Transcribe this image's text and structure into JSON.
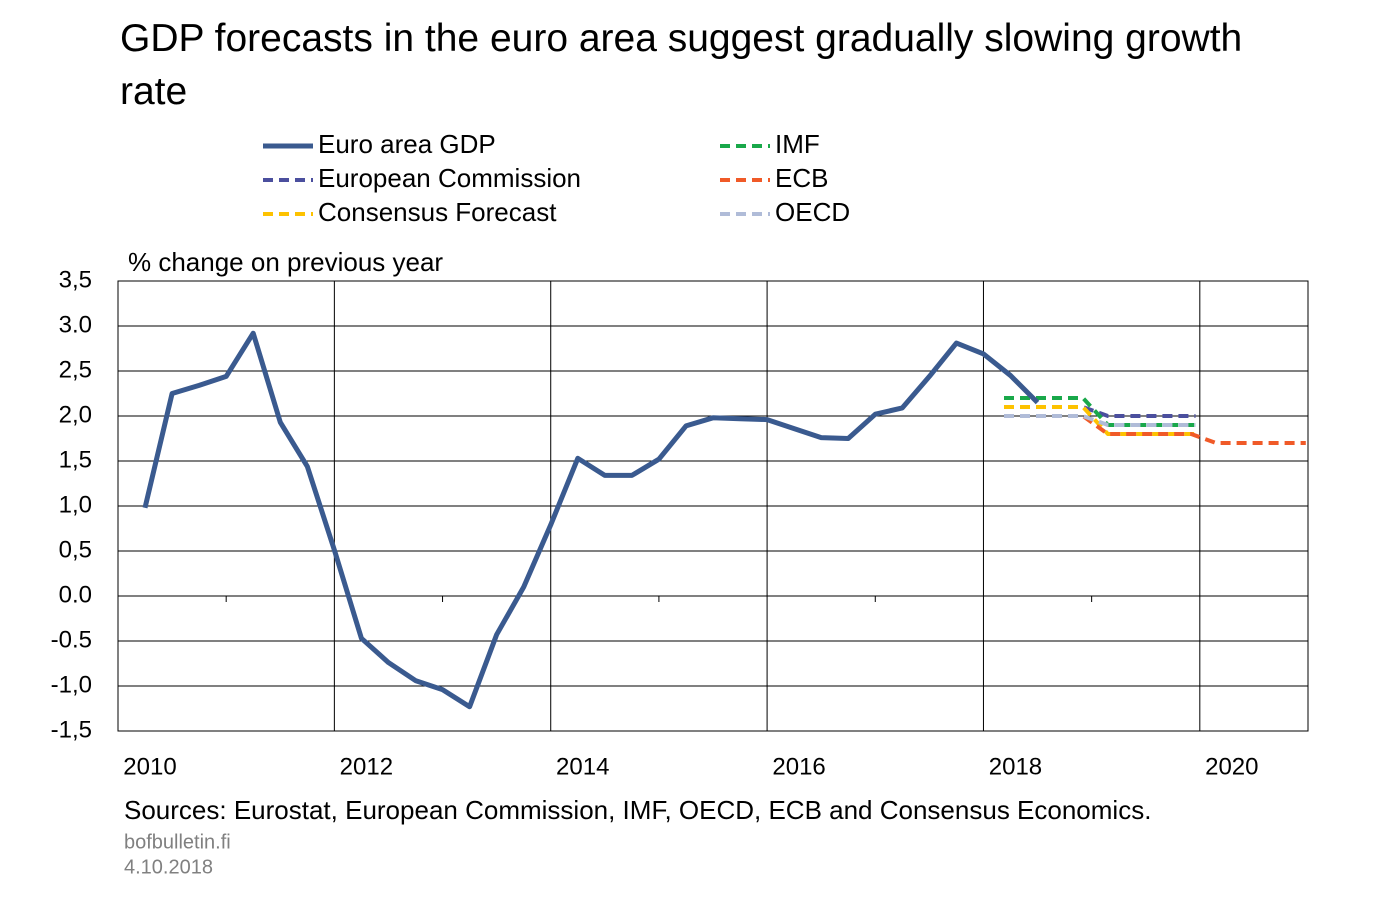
{
  "chart_data": {
    "type": "line",
    "title": "GDP forecasts in the euro area suggest gradually slowing growth rate",
    "y_label": "% change on previous year",
    "source": "Sources: Eurostat, European Commission, IMF, OECD, ECB and Consensus Economics.",
    "footer": [
      "bofbulletin.fi",
      "4.10.2018"
    ],
    "xlim": [
      2010,
      2021
    ],
    "xticks": [
      2010,
      2012,
      2014,
      2016,
      2018,
      2020
    ],
    "xminorticks": [
      2011,
      2013,
      2015,
      2017,
      2019
    ],
    "ylim": [
      -1.5,
      3.5
    ],
    "yticks": [
      {
        "value": 3.5,
        "label": "3,5"
      },
      {
        "value": 3.0,
        "label": "3.0"
      },
      {
        "value": 2.5,
        "label": "2,5"
      },
      {
        "value": 2.0,
        "label": "2,0"
      },
      {
        "value": 1.5,
        "label": "1,5"
      },
      {
        "value": 1.0,
        "label": "1,0"
      },
      {
        "value": 0.5,
        "label": "0,5"
      },
      {
        "value": 0.0,
        "label": "0.0"
      },
      {
        "value": -0.5,
        "label": "-0.5"
      },
      {
        "value": -1.0,
        "label": "-1,0"
      },
      {
        "value": -1.5,
        "label": "-1,5"
      }
    ],
    "grid": true,
    "series": [
      {
        "name": "Euro area GDP",
        "color": "#3a5a8f",
        "dashed": false,
        "x": [
          2010.25,
          2010.5,
          2010.75,
          2011.0,
          2011.25,
          2011.5,
          2011.75,
          2012.0,
          2012.25,
          2012.5,
          2012.75,
          2013.0,
          2013.25,
          2013.5,
          2013.75,
          2014.0,
          2014.25,
          2014.5,
          2014.75,
          2015.0,
          2015.25,
          2015.5,
          2015.75,
          2016.0,
          2016.25,
          2016.5,
          2016.75,
          2017.0,
          2017.25,
          2017.5,
          2017.75,
          2018.0,
          2018.25,
          2018.5
        ],
        "values": [
          0.98,
          2.25,
          2.34,
          2.44,
          2.92,
          1.93,
          1.44,
          0.51,
          -0.47,
          -0.74,
          -0.94,
          -1.04,
          -1.23,
          -0.43,
          0.1,
          0.79,
          1.53,
          1.34,
          1.34,
          1.52,
          1.89,
          1.98,
          1.97,
          1.96,
          1.86,
          1.76,
          1.75,
          2.02,
          2.09,
          2.44,
          2.81,
          2.69,
          2.45,
          2.15
        ]
      },
      {
        "name": "European Commission",
        "color": "#4b4f9e",
        "dashed": true,
        "x": [
          2018.19,
          2018.92,
          2019.15,
          2019.96
        ],
        "values": [
          2.1,
          2.1,
          2.0,
          2.0
        ]
      },
      {
        "name": "Consensus Forecast",
        "color": "#fdc200",
        "dashed": true,
        "x": [
          2018.19,
          2018.92,
          2019.15,
          2019.96
        ],
        "values": [
          2.1,
          2.1,
          1.8,
          1.8
        ]
      },
      {
        "name": "IMF",
        "color": "#19a84a",
        "dashed": true,
        "x": [
          2018.19,
          2018.92,
          2019.15,
          2019.96
        ],
        "values": [
          2.2,
          2.2,
          1.9,
          1.9
        ]
      },
      {
        "name": "ECB",
        "color": "#f05a28",
        "dashed": true,
        "x": [
          2018.19,
          2018.92,
          2019.15,
          2019.92,
          2020.15,
          2020.98
        ],
        "values": [
          2.0,
          2.0,
          1.8,
          1.8,
          1.7,
          1.7
        ]
      },
      {
        "name": "OECD",
        "color": "#b0bcd8",
        "dashed": true,
        "x": [
          2018.19,
          2018.92,
          2019.15,
          2019.96
        ],
        "values": [
          2.0,
          2.0,
          1.9,
          1.9
        ]
      }
    ]
  }
}
